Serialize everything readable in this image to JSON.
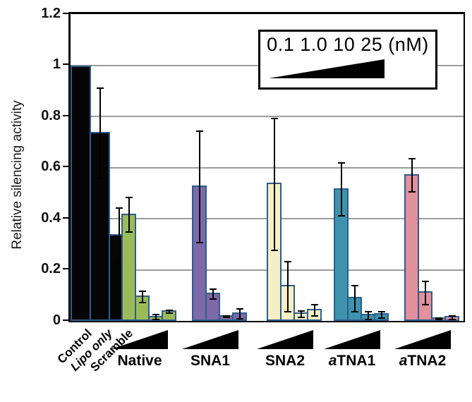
{
  "chart_data": {
    "type": "bar",
    "title": "",
    "ylabel": "Relative silencing activity",
    "ylim": [
      0,
      1.2
    ],
    "yticks": [
      1.2,
      1.0,
      0.8,
      0.6,
      0.4,
      0.2,
      0
    ],
    "y_tick_labels": [
      "1.2",
      "1",
      "0.8",
      "0.6",
      "0.4",
      "0.2",
      "0"
    ],
    "grid": true,
    "legend_text": "0.1 1.0 10 25 (nM)",
    "doses_nM": [
      0.1,
      1.0,
      10,
      25
    ],
    "controls": [
      {
        "label": "Control",
        "value": 1.0,
        "err": 0,
        "italic": false
      },
      {
        "label": "Lipo only",
        "value": 0.74,
        "err": 0.18,
        "italic": true
      },
      {
        "label": "Scramble",
        "value": 0.34,
        "err": 0.11,
        "italic": false
      }
    ],
    "control_color": "#050505",
    "groups": [
      {
        "label": "Native",
        "italic_prefix": false,
        "color": "#9bbb59",
        "values": [
          0.42,
          0.1,
          0.02,
          0.042
        ],
        "errors": [
          0.07,
          0.025,
          0.012,
          0.008
        ]
      },
      {
        "label": "SNA1",
        "italic_prefix": false,
        "color": "#7e69a8",
        "values": [
          0.53,
          0.11,
          0.022,
          0.032
        ],
        "errors": [
          0.22,
          0.022,
          0.005,
          0.022
        ]
      },
      {
        "label": "SNA2",
        "italic_prefix": false,
        "color": "#f5efc5",
        "values": [
          0.54,
          0.14,
          0.032,
          0.046
        ],
        "errors": [
          0.26,
          0.1,
          0.015,
          0.025
        ]
      },
      {
        "label": "aTNA1",
        "italic_prefix": true,
        "color": "#3e93ac",
        "values": [
          0.52,
          0.093,
          0.027,
          0.03
        ],
        "errors": [
          0.105,
          0.053,
          0.018,
          0.015
        ]
      },
      {
        "label": "aTNA2",
        "italic_prefix": true,
        "color": "#e2909b",
        "values": [
          0.575,
          0.115,
          0.013,
          0.018
        ],
        "errors": [
          0.068,
          0.048,
          0.006,
          0.009
        ]
      }
    ],
    "bar_border_color": "#2e5c8e",
    "gridline_color": "#9c9c9c",
    "legend_position": "upper center"
  }
}
